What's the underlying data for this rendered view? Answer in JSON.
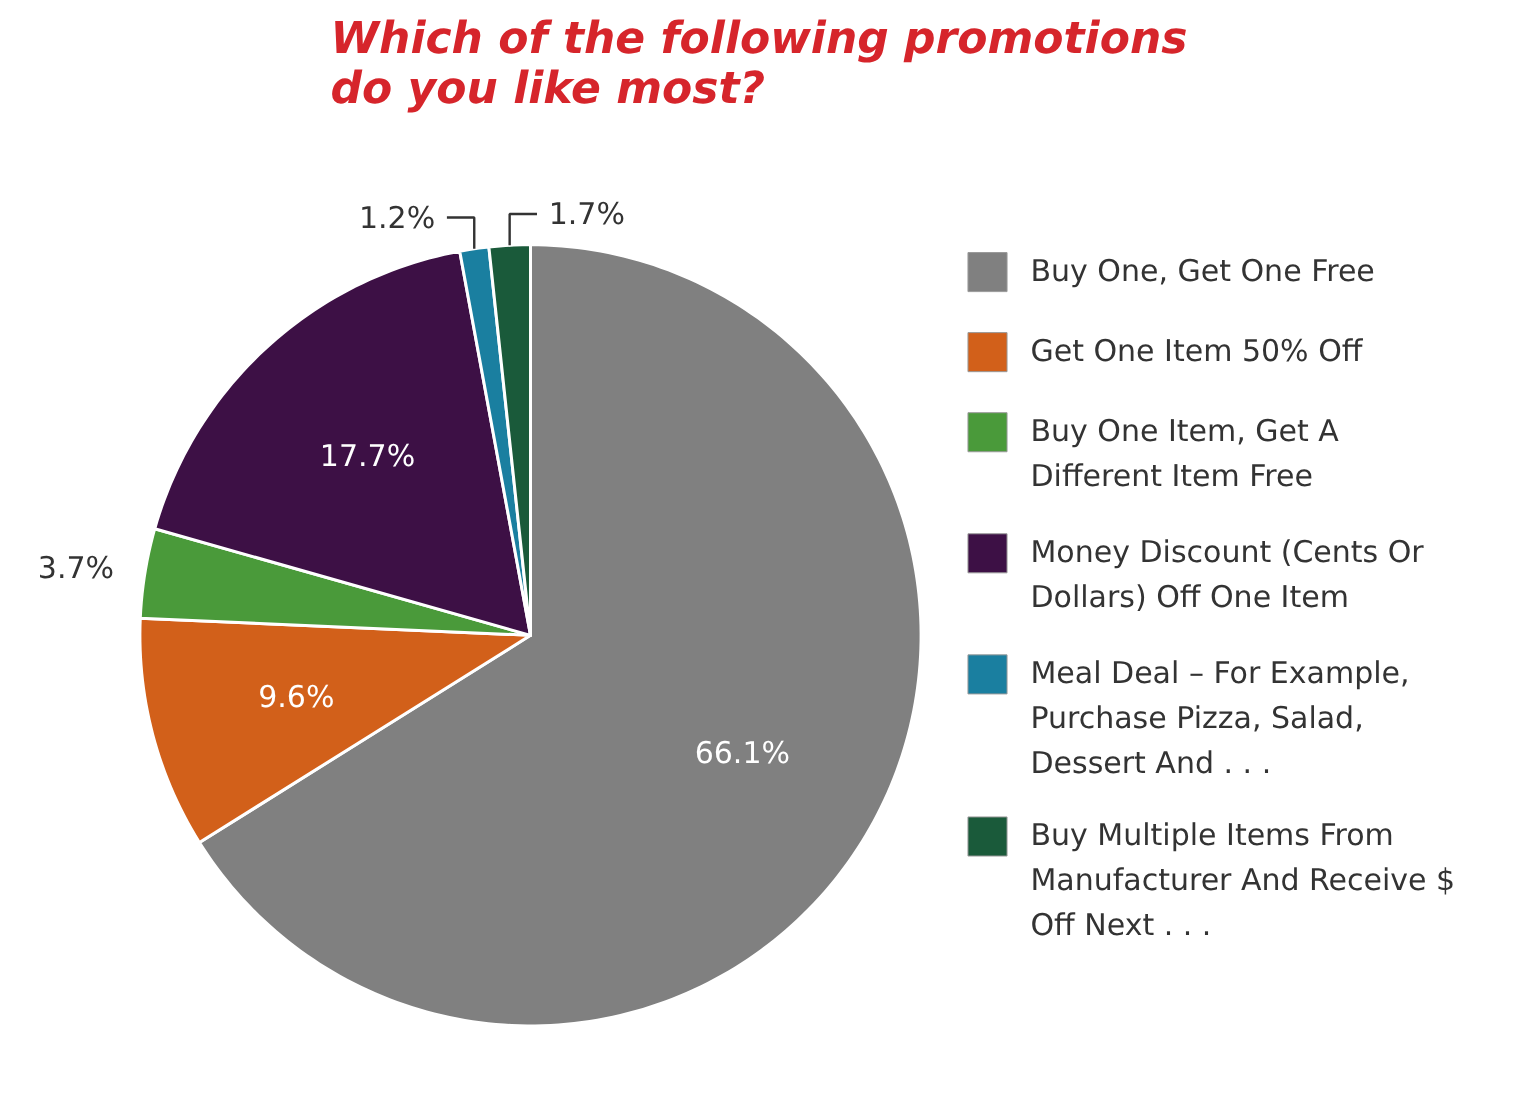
{
  "chart_data": {
    "type": "pie",
    "title": "Which of the following promotions do you like most?",
    "categories": [
      "Buy One, Get One Free",
      "Get One Item 50% Off",
      "Buy One Item, Get A Different Item Free",
      "Money Discount (Cents Or Dollars) Off One Item",
      "Meal Deal – For Example, Purchase Pizza, Salad, Dessert And . . .",
      "Buy Multiple Items From Manufacturer And Receive $ Off Next . . ."
    ],
    "values": [
      66.1,
      9.6,
      3.7,
      17.7,
      1.2,
      1.7
    ],
    "colors": [
      "#808080",
      "#d2601a",
      "#4a9a3a",
      "#3d1045",
      "#1a7fa0",
      "#1a5a3a"
    ],
    "value_labels": [
      "66.1%",
      "9.6%",
      "3.7%",
      "17.7%",
      "1.2%",
      "1.7%"
    ],
    "legend": "right"
  }
}
